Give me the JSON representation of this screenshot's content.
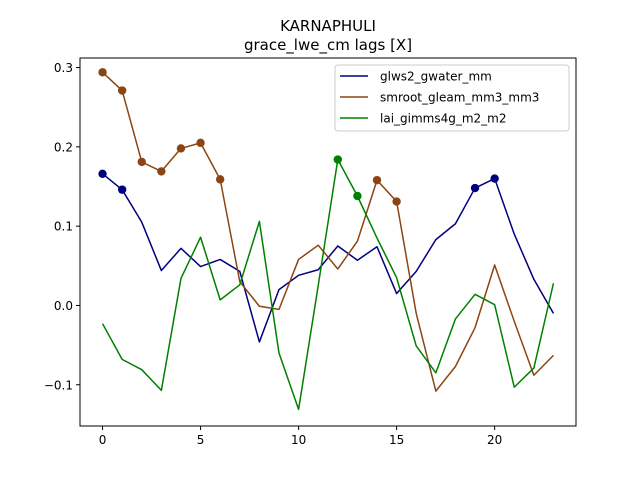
{
  "chart_data": {
    "type": "line",
    "title": "KARNAPHULI",
    "subtitle": "grace_lwe_cm lags [X]",
    "xlabel": "",
    "ylabel": "",
    "xlim": [
      -1.15,
      24.15
    ],
    "ylim": [
      -0.152,
      0.312
    ],
    "xticks": [
      0,
      5,
      10,
      15,
      20
    ],
    "yticks": [
      -0.1,
      0.0,
      0.1,
      0.2,
      0.3
    ],
    "ytick_labels": [
      "−0.1",
      "0.0",
      "0.1",
      "0.2",
      "0.3"
    ],
    "grid": false,
    "legend_position": "top-right",
    "x": [
      0,
      1,
      2,
      3,
      4,
      5,
      6,
      7,
      8,
      9,
      10,
      11,
      12,
      13,
      14,
      15,
      16,
      17,
      18,
      19,
      20,
      21,
      22,
      23
    ],
    "series": [
      {
        "name": "glws2_gwater_mm",
        "color": "#00007f",
        "values": [
          0.166,
          0.146,
          0.105,
          0.044,
          0.072,
          0.049,
          0.058,
          0.043,
          -0.046,
          0.02,
          0.038,
          0.045,
          0.075,
          0.057,
          0.074,
          0.015,
          0.043,
          0.083,
          0.103,
          0.148,
          0.16,
          0.09,
          0.033,
          -0.01
        ],
        "markers": [
          0,
          1,
          19,
          20
        ]
      },
      {
        "name": "smroot_gleam_mm3_mm3",
        "color": "#8b4513",
        "values": [
          0.294,
          0.271,
          0.181,
          0.169,
          0.198,
          0.205,
          0.159,
          0.03,
          -0.001,
          -0.005,
          0.058,
          0.076,
          0.046,
          0.081,
          0.158,
          0.131,
          -0.01,
          -0.108,
          -0.077,
          -0.028,
          0.051,
          -0.02,
          -0.088,
          -0.063
        ],
        "markers": [
          0,
          1,
          2,
          3,
          4,
          5,
          6,
          14,
          15
        ]
      },
      {
        "name": "lai_gimms4g_m2_m2",
        "color": "#008000",
        "values": [
          -0.023,
          -0.068,
          -0.081,
          -0.107,
          0.034,
          0.086,
          0.007,
          0.026,
          0.106,
          -0.06,
          -0.131,
          0.025,
          0.184,
          0.138,
          0.085,
          0.035,
          -0.051,
          -0.085,
          -0.017,
          0.014,
          0.001,
          -0.103,
          -0.079,
          0.028
        ],
        "markers": [
          12,
          13
        ]
      }
    ]
  }
}
